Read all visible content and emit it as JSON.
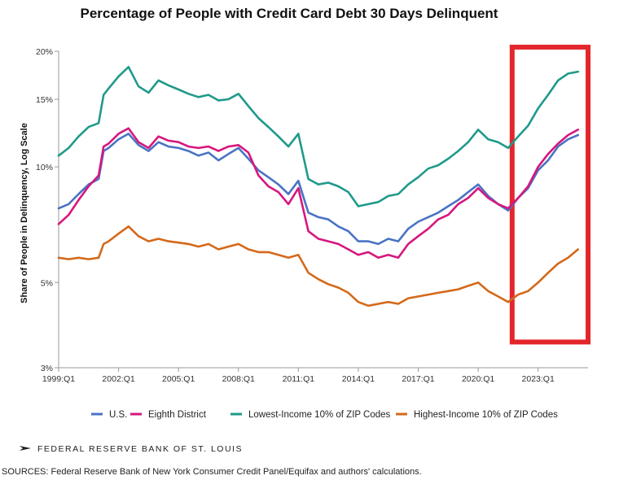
{
  "chart_data": {
    "type": "line",
    "title": "Percentage of People with Credit Card Debt 30 Days Delinquent",
    "xlabel": "",
    "ylabel": "Share of People in Delinquency, Log Scale",
    "yscale": "log",
    "ylim": [
      3,
      20
    ],
    "yticks": [
      3,
      5,
      10,
      15,
      20
    ],
    "ytick_labels": [
      "3%",
      "5%",
      "10%",
      "15%",
      "20%"
    ],
    "xlim": [
      1999.0,
      2025.5
    ],
    "xticks": [
      1999,
      2002,
      2005,
      2008,
      2011,
      2014,
      2017,
      2020,
      2023
    ],
    "xtick_labels": [
      "1999:Q1",
      "2002:Q1",
      "2005:Q1",
      "2008:Q1",
      "2011:Q1",
      "2014:Q1",
      "2017:Q1",
      "2020:Q1",
      "2023:Q1"
    ],
    "grid": false,
    "legend_position": "bottom",
    "highlight": {
      "x_start": 2021.7,
      "x_end": 2025.5,
      "y_start": 3.5,
      "y_end": 20.5,
      "color": "#e3262b"
    },
    "series": [
      {
        "name": "U.S.",
        "color": "#4a73c4",
        "points": [
          [
            1999.0,
            7.8
          ],
          [
            1999.5,
            8.0
          ],
          [
            2000.0,
            8.5
          ],
          [
            2000.5,
            9.0
          ],
          [
            2001.0,
            9.3
          ],
          [
            2001.25,
            11.0
          ],
          [
            2001.5,
            11.2
          ],
          [
            2002.0,
            11.8
          ],
          [
            2002.5,
            12.2
          ],
          [
            2003.0,
            11.4
          ],
          [
            2003.5,
            11.0
          ],
          [
            2004.0,
            11.6
          ],
          [
            2004.5,
            11.3
          ],
          [
            2005.0,
            11.2
          ],
          [
            2005.5,
            11.0
          ],
          [
            2006.0,
            10.7
          ],
          [
            2006.5,
            10.9
          ],
          [
            2007.0,
            10.4
          ],
          [
            2007.5,
            10.8
          ],
          [
            2008.0,
            11.2
          ],
          [
            2008.5,
            10.5
          ],
          [
            2009.0,
            9.8
          ],
          [
            2009.5,
            9.4
          ],
          [
            2010.0,
            9.0
          ],
          [
            2010.5,
            8.5
          ],
          [
            2011.0,
            9.2
          ],
          [
            2011.5,
            7.6
          ],
          [
            2012.0,
            7.4
          ],
          [
            2012.5,
            7.3
          ],
          [
            2013.0,
            7.0
          ],
          [
            2013.5,
            6.8
          ],
          [
            2014.0,
            6.4
          ],
          [
            2014.5,
            6.4
          ],
          [
            2015.0,
            6.3
          ],
          [
            2015.5,
            6.5
          ],
          [
            2016.0,
            6.4
          ],
          [
            2016.5,
            6.9
          ],
          [
            2017.0,
            7.2
          ],
          [
            2017.5,
            7.4
          ],
          [
            2018.0,
            7.6
          ],
          [
            2018.5,
            7.9
          ],
          [
            2019.0,
            8.2
          ],
          [
            2019.5,
            8.6
          ],
          [
            2020.0,
            9.0
          ],
          [
            2020.5,
            8.4
          ],
          [
            2021.0,
            8.0
          ],
          [
            2021.5,
            7.7
          ],
          [
            2022.0,
            8.3
          ],
          [
            2022.5,
            8.8
          ],
          [
            2023.0,
            9.8
          ],
          [
            2023.5,
            10.4
          ],
          [
            2024.0,
            11.3
          ],
          [
            2024.5,
            11.8
          ],
          [
            2025.0,
            12.1
          ]
        ]
      },
      {
        "name": "Eighth District",
        "color": "#d6177e",
        "points": [
          [
            1999.0,
            7.1
          ],
          [
            1999.5,
            7.5
          ],
          [
            2000.0,
            8.2
          ],
          [
            2000.5,
            8.9
          ],
          [
            2001.0,
            9.5
          ],
          [
            2001.25,
            11.3
          ],
          [
            2001.5,
            11.5
          ],
          [
            2002.0,
            12.2
          ],
          [
            2002.5,
            12.6
          ],
          [
            2003.0,
            11.6
          ],
          [
            2003.5,
            11.2
          ],
          [
            2004.0,
            12.0
          ],
          [
            2004.5,
            11.7
          ],
          [
            2005.0,
            11.6
          ],
          [
            2005.5,
            11.3
          ],
          [
            2006.0,
            11.2
          ],
          [
            2006.5,
            11.3
          ],
          [
            2007.0,
            11.0
          ],
          [
            2007.5,
            11.3
          ],
          [
            2008.0,
            11.4
          ],
          [
            2008.5,
            10.9
          ],
          [
            2009.0,
            9.5
          ],
          [
            2009.5,
            8.9
          ],
          [
            2010.0,
            8.6
          ],
          [
            2010.5,
            8.0
          ],
          [
            2011.0,
            8.8
          ],
          [
            2011.5,
            6.8
          ],
          [
            2012.0,
            6.5
          ],
          [
            2012.5,
            6.4
          ],
          [
            2013.0,
            6.3
          ],
          [
            2013.5,
            6.1
          ],
          [
            2014.0,
            5.9
          ],
          [
            2014.5,
            6.0
          ],
          [
            2015.0,
            5.8
          ],
          [
            2015.5,
            5.9
          ],
          [
            2016.0,
            5.8
          ],
          [
            2016.5,
            6.3
          ],
          [
            2017.0,
            6.6
          ],
          [
            2017.5,
            6.9
          ],
          [
            2018.0,
            7.3
          ],
          [
            2018.5,
            7.5
          ],
          [
            2019.0,
            8.0
          ],
          [
            2019.5,
            8.3
          ],
          [
            2020.0,
            8.8
          ],
          [
            2020.5,
            8.3
          ],
          [
            2021.0,
            8.0
          ],
          [
            2021.5,
            7.8
          ],
          [
            2022.0,
            8.3
          ],
          [
            2022.5,
            8.9
          ],
          [
            2023.0,
            10.0
          ],
          [
            2023.5,
            10.8
          ],
          [
            2024.0,
            11.5
          ],
          [
            2024.5,
            12.1
          ],
          [
            2025.0,
            12.5
          ]
        ]
      },
      {
        "name": "Lowest-Income 10% of ZIP Codes",
        "color": "#1f9a8a",
        "points": [
          [
            1999.0,
            10.7
          ],
          [
            1999.5,
            11.2
          ],
          [
            2000.0,
            12.0
          ],
          [
            2000.5,
            12.7
          ],
          [
            2001.0,
            13.0
          ],
          [
            2001.25,
            15.4
          ],
          [
            2001.5,
            16.0
          ],
          [
            2002.0,
            17.2
          ],
          [
            2002.5,
            18.2
          ],
          [
            2003.0,
            16.2
          ],
          [
            2003.5,
            15.6
          ],
          [
            2004.0,
            16.8
          ],
          [
            2004.5,
            16.3
          ],
          [
            2005.0,
            15.9
          ],
          [
            2005.5,
            15.5
          ],
          [
            2006.0,
            15.2
          ],
          [
            2006.5,
            15.4
          ],
          [
            2007.0,
            14.9
          ],
          [
            2007.5,
            15.0
          ],
          [
            2008.0,
            15.5
          ],
          [
            2008.5,
            14.4
          ],
          [
            2009.0,
            13.4
          ],
          [
            2009.5,
            12.7
          ],
          [
            2010.0,
            12.0
          ],
          [
            2010.5,
            11.3
          ],
          [
            2011.0,
            12.2
          ],
          [
            2011.5,
            9.3
          ],
          [
            2012.0,
            9.0
          ],
          [
            2012.5,
            9.1
          ],
          [
            2013.0,
            8.9
          ],
          [
            2013.5,
            8.6
          ],
          [
            2014.0,
            7.9
          ],
          [
            2014.5,
            8.0
          ],
          [
            2015.0,
            8.1
          ],
          [
            2015.5,
            8.4
          ],
          [
            2016.0,
            8.5
          ],
          [
            2016.5,
            9.0
          ],
          [
            2017.0,
            9.4
          ],
          [
            2017.5,
            9.9
          ],
          [
            2018.0,
            10.1
          ],
          [
            2018.5,
            10.5
          ],
          [
            2019.0,
            11.0
          ],
          [
            2019.5,
            11.6
          ],
          [
            2020.0,
            12.5
          ],
          [
            2020.5,
            11.8
          ],
          [
            2021.0,
            11.6
          ],
          [
            2021.5,
            11.2
          ],
          [
            2022.0,
            12.0
          ],
          [
            2022.5,
            12.8
          ],
          [
            2023.0,
            14.2
          ],
          [
            2023.5,
            15.4
          ],
          [
            2024.0,
            16.8
          ],
          [
            2024.5,
            17.5
          ],
          [
            2025.0,
            17.7
          ]
        ]
      },
      {
        "name": "Highest-Income 10% of ZIP Codes",
        "color": "#d4691a",
        "points": [
          [
            1999.0,
            5.8
          ],
          [
            1999.5,
            5.75
          ],
          [
            2000.0,
            5.8
          ],
          [
            2000.5,
            5.75
          ],
          [
            2001.0,
            5.8
          ],
          [
            2001.25,
            6.3
          ],
          [
            2001.5,
            6.4
          ],
          [
            2002.0,
            6.7
          ],
          [
            2002.5,
            7.0
          ],
          [
            2003.0,
            6.6
          ],
          [
            2003.5,
            6.4
          ],
          [
            2004.0,
            6.5
          ],
          [
            2004.5,
            6.4
          ],
          [
            2005.0,
            6.35
          ],
          [
            2005.5,
            6.3
          ],
          [
            2006.0,
            6.2
          ],
          [
            2006.5,
            6.3
          ],
          [
            2007.0,
            6.1
          ],
          [
            2007.5,
            6.2
          ],
          [
            2008.0,
            6.3
          ],
          [
            2008.5,
            6.1
          ],
          [
            2009.0,
            6.0
          ],
          [
            2009.5,
            6.0
          ],
          [
            2010.0,
            5.9
          ],
          [
            2010.5,
            5.8
          ],
          [
            2011.0,
            5.9
          ],
          [
            2011.5,
            5.3
          ],
          [
            2012.0,
            5.1
          ],
          [
            2012.5,
            4.95
          ],
          [
            2013.0,
            4.85
          ],
          [
            2013.5,
            4.7
          ],
          [
            2014.0,
            4.45
          ],
          [
            2014.5,
            4.35
          ],
          [
            2015.0,
            4.4
          ],
          [
            2015.5,
            4.45
          ],
          [
            2016.0,
            4.4
          ],
          [
            2016.5,
            4.55
          ],
          [
            2017.0,
            4.6
          ],
          [
            2017.5,
            4.65
          ],
          [
            2018.0,
            4.7
          ],
          [
            2018.5,
            4.75
          ],
          [
            2019.0,
            4.8
          ],
          [
            2019.5,
            4.9
          ],
          [
            2020.0,
            5.0
          ],
          [
            2020.5,
            4.75
          ],
          [
            2021.0,
            4.6
          ],
          [
            2021.5,
            4.45
          ],
          [
            2022.0,
            4.65
          ],
          [
            2022.5,
            4.75
          ],
          [
            2023.0,
            5.0
          ],
          [
            2023.5,
            5.3
          ],
          [
            2024.0,
            5.6
          ],
          [
            2024.5,
            5.8
          ],
          [
            2025.0,
            6.1
          ]
        ]
      }
    ]
  },
  "branding": {
    "publisher": "FEDERAL RESERVE BANK OF ST. LOUIS"
  },
  "source_note": "SOURCES: Federal Reserve Bank of New York Consumer Credit Panel/Equifax and authors' calculations."
}
